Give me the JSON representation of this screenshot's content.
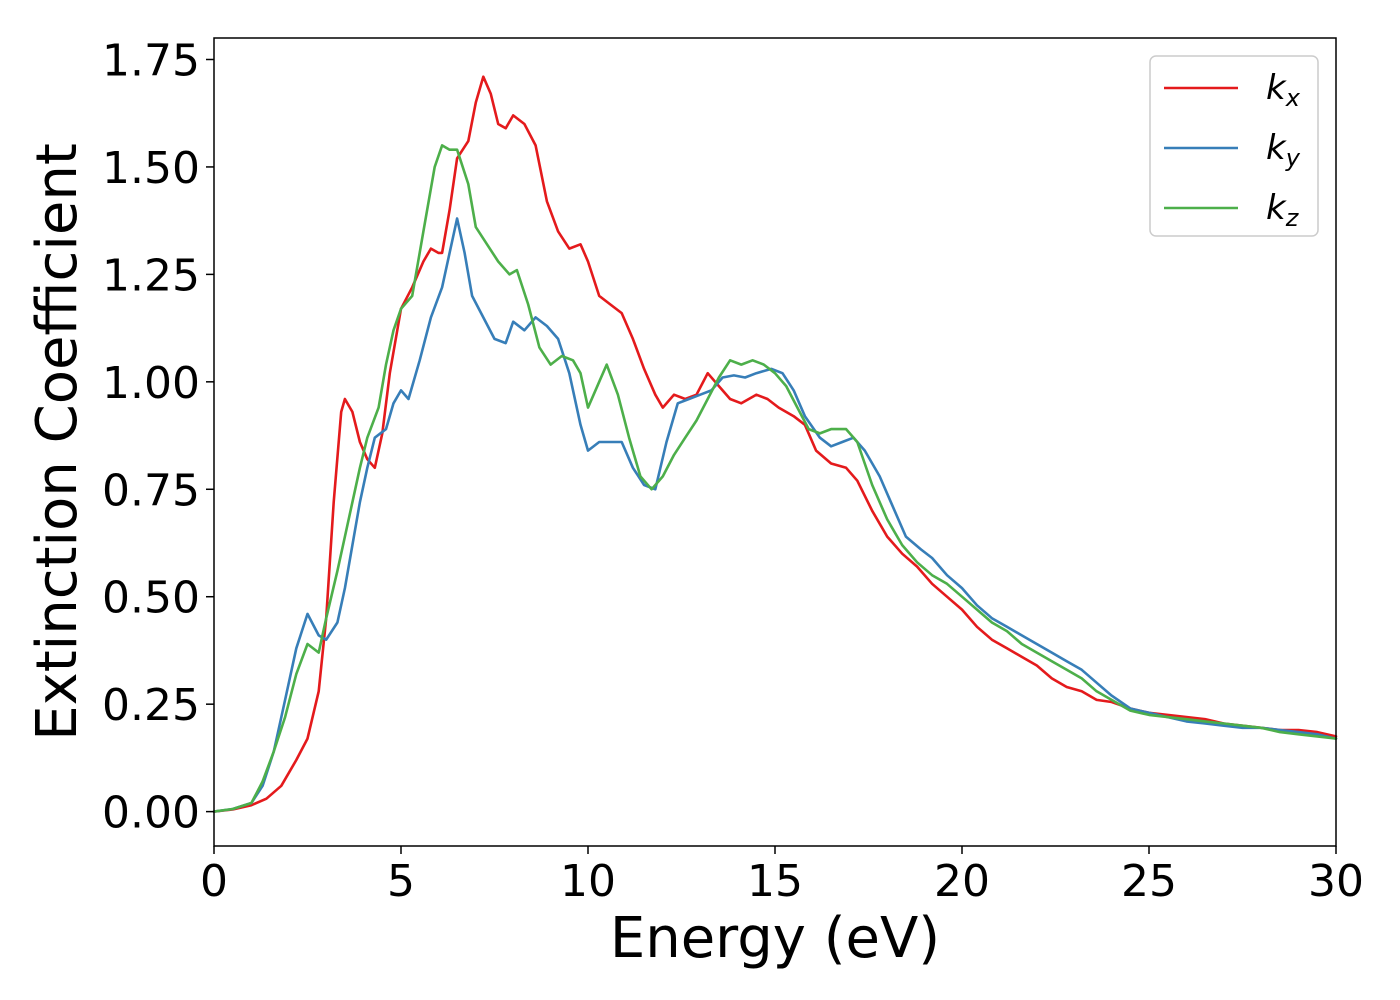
{
  "chart_data": {
    "type": "line",
    "title": "",
    "xlabel": "Energy (eV)",
    "ylabel": "Extinction Coefficient",
    "xlim": [
      0,
      30
    ],
    "ylim": [
      -0.08,
      1.8
    ],
    "x_ticks": [
      0,
      5,
      10,
      15,
      20,
      25,
      30
    ],
    "x_tick_labels": [
      "0",
      "5",
      "10",
      "15",
      "20",
      "25",
      "30"
    ],
    "y_ticks": [
      0.0,
      0.25,
      0.5,
      0.75,
      1.0,
      1.25,
      1.5,
      1.75
    ],
    "y_tick_labels": [
      "0.00",
      "0.25",
      "0.50",
      "0.75",
      "1.00",
      "1.25",
      "1.50",
      "1.75"
    ],
    "grid": false,
    "legend_position": "top-right",
    "series": [
      {
        "name": "kx",
        "label_base": "k",
        "label_sub": "x",
        "color": "#e41a1c",
        "points": [
          [
            0,
            0.0
          ],
          [
            0.5,
            0.005
          ],
          [
            1.0,
            0.015
          ],
          [
            1.4,
            0.03
          ],
          [
            1.8,
            0.06
          ],
          [
            2.2,
            0.12
          ],
          [
            2.5,
            0.17
          ],
          [
            2.8,
            0.28
          ],
          [
            3.0,
            0.45
          ],
          [
            3.2,
            0.72
          ],
          [
            3.4,
            0.93
          ],
          [
            3.5,
            0.96
          ],
          [
            3.7,
            0.93
          ],
          [
            3.9,
            0.86
          ],
          [
            4.1,
            0.82
          ],
          [
            4.3,
            0.8
          ],
          [
            4.5,
            0.88
          ],
          [
            4.7,
            1.02
          ],
          [
            5.0,
            1.17
          ],
          [
            5.3,
            1.22
          ],
          [
            5.6,
            1.28
          ],
          [
            5.8,
            1.31
          ],
          [
            6.0,
            1.3
          ],
          [
            6.1,
            1.3
          ],
          [
            6.3,
            1.4
          ],
          [
            6.5,
            1.52
          ],
          [
            6.8,
            1.56
          ],
          [
            7.0,
            1.65
          ],
          [
            7.2,
            1.71
          ],
          [
            7.4,
            1.67
          ],
          [
            7.6,
            1.6
          ],
          [
            7.8,
            1.59
          ],
          [
            8.0,
            1.62
          ],
          [
            8.3,
            1.6
          ],
          [
            8.6,
            1.55
          ],
          [
            8.9,
            1.42
          ],
          [
            9.2,
            1.35
          ],
          [
            9.5,
            1.31
          ],
          [
            9.8,
            1.32
          ],
          [
            10.0,
            1.28
          ],
          [
            10.3,
            1.2
          ],
          [
            10.6,
            1.18
          ],
          [
            10.9,
            1.16
          ],
          [
            11.2,
            1.1
          ],
          [
            11.5,
            1.03
          ],
          [
            11.8,
            0.97
          ],
          [
            12.0,
            0.94
          ],
          [
            12.3,
            0.97
          ],
          [
            12.6,
            0.96
          ],
          [
            12.9,
            0.97
          ],
          [
            13.2,
            1.02
          ],
          [
            13.5,
            0.99
          ],
          [
            13.8,
            0.96
          ],
          [
            14.1,
            0.95
          ],
          [
            14.5,
            0.97
          ],
          [
            14.8,
            0.96
          ],
          [
            15.1,
            0.94
          ],
          [
            15.5,
            0.92
          ],
          [
            15.8,
            0.9
          ],
          [
            16.1,
            0.84
          ],
          [
            16.5,
            0.81
          ],
          [
            16.9,
            0.8
          ],
          [
            17.2,
            0.77
          ],
          [
            17.6,
            0.7
          ],
          [
            18.0,
            0.64
          ],
          [
            18.4,
            0.6
          ],
          [
            18.8,
            0.57
          ],
          [
            19.2,
            0.53
          ],
          [
            19.6,
            0.5
          ],
          [
            20.0,
            0.47
          ],
          [
            20.4,
            0.43
          ],
          [
            20.8,
            0.4
          ],
          [
            21.2,
            0.38
          ],
          [
            21.6,
            0.36
          ],
          [
            22.0,
            0.34
          ],
          [
            22.4,
            0.31
          ],
          [
            22.8,
            0.29
          ],
          [
            23.2,
            0.28
          ],
          [
            23.6,
            0.26
          ],
          [
            24.0,
            0.255
          ],
          [
            24.5,
            0.24
          ],
          [
            25.0,
            0.23
          ],
          [
            25.5,
            0.225
          ],
          [
            26.0,
            0.22
          ],
          [
            26.5,
            0.215
          ],
          [
            27.0,
            0.205
          ],
          [
            27.5,
            0.2
          ],
          [
            28.0,
            0.195
          ],
          [
            28.5,
            0.19
          ],
          [
            29.0,
            0.19
          ],
          [
            29.5,
            0.185
          ],
          [
            30.0,
            0.175
          ]
        ]
      },
      {
        "name": "ky",
        "label_base": "k",
        "label_sub": "y",
        "color": "#377eb8",
        "points": [
          [
            0,
            0.0
          ],
          [
            0.5,
            0.006
          ],
          [
            1.0,
            0.02
          ],
          [
            1.3,
            0.06
          ],
          [
            1.6,
            0.14
          ],
          [
            1.9,
            0.26
          ],
          [
            2.2,
            0.38
          ],
          [
            2.5,
            0.46
          ],
          [
            2.8,
            0.41
          ],
          [
            3.0,
            0.4
          ],
          [
            3.3,
            0.44
          ],
          [
            3.5,
            0.52
          ],
          [
            3.7,
            0.62
          ],
          [
            3.9,
            0.72
          ],
          [
            4.1,
            0.8
          ],
          [
            4.3,
            0.87
          ],
          [
            4.6,
            0.89
          ],
          [
            4.8,
            0.95
          ],
          [
            5.0,
            0.98
          ],
          [
            5.2,
            0.96
          ],
          [
            5.5,
            1.05
          ],
          [
            5.8,
            1.15
          ],
          [
            6.1,
            1.22
          ],
          [
            6.3,
            1.3
          ],
          [
            6.5,
            1.38
          ],
          [
            6.7,
            1.3
          ],
          [
            6.9,
            1.2
          ],
          [
            7.2,
            1.15
          ],
          [
            7.5,
            1.1
          ],
          [
            7.8,
            1.09
          ],
          [
            8.0,
            1.14
          ],
          [
            8.3,
            1.12
          ],
          [
            8.6,
            1.15
          ],
          [
            8.9,
            1.13
          ],
          [
            9.2,
            1.1
          ],
          [
            9.5,
            1.02
          ],
          [
            9.8,
            0.9
          ],
          [
            10.0,
            0.84
          ],
          [
            10.3,
            0.86
          ],
          [
            10.6,
            0.86
          ],
          [
            10.9,
            0.86
          ],
          [
            11.2,
            0.8
          ],
          [
            11.5,
            0.76
          ],
          [
            11.8,
            0.75
          ],
          [
            12.1,
            0.86
          ],
          [
            12.4,
            0.95
          ],
          [
            12.7,
            0.96
          ],
          [
            13.0,
            0.97
          ],
          [
            13.3,
            0.98
          ],
          [
            13.6,
            1.01
          ],
          [
            13.9,
            1.015
          ],
          [
            14.2,
            1.01
          ],
          [
            14.5,
            1.02
          ],
          [
            14.9,
            1.03
          ],
          [
            15.2,
            1.02
          ],
          [
            15.5,
            0.98
          ],
          [
            15.8,
            0.92
          ],
          [
            16.2,
            0.87
          ],
          [
            16.5,
            0.85
          ],
          [
            16.8,
            0.86
          ],
          [
            17.1,
            0.87
          ],
          [
            17.4,
            0.84
          ],
          [
            17.8,
            0.78
          ],
          [
            18.1,
            0.72
          ],
          [
            18.5,
            0.64
          ],
          [
            18.9,
            0.61
          ],
          [
            19.2,
            0.59
          ],
          [
            19.6,
            0.55
          ],
          [
            20.0,
            0.52
          ],
          [
            20.4,
            0.48
          ],
          [
            20.8,
            0.45
          ],
          [
            21.2,
            0.43
          ],
          [
            21.6,
            0.41
          ],
          [
            22.0,
            0.39
          ],
          [
            22.4,
            0.37
          ],
          [
            22.8,
            0.35
          ],
          [
            23.2,
            0.33
          ],
          [
            23.6,
            0.3
          ],
          [
            24.0,
            0.27
          ],
          [
            24.5,
            0.24
          ],
          [
            25.0,
            0.23
          ],
          [
            25.5,
            0.22
          ],
          [
            26.0,
            0.21
          ],
          [
            26.5,
            0.205
          ],
          [
            27.0,
            0.2
          ],
          [
            27.5,
            0.195
          ],
          [
            28.0,
            0.195
          ],
          [
            28.5,
            0.19
          ],
          [
            29.0,
            0.185
          ],
          [
            29.5,
            0.18
          ],
          [
            30.0,
            0.17
          ]
        ]
      },
      {
        "name": "kz",
        "label_base": "k",
        "label_sub": "z",
        "color": "#4daf4a",
        "points": [
          [
            0,
            0.0
          ],
          [
            0.5,
            0.006
          ],
          [
            1.0,
            0.02
          ],
          [
            1.3,
            0.07
          ],
          [
            1.6,
            0.14
          ],
          [
            1.9,
            0.22
          ],
          [
            2.2,
            0.32
          ],
          [
            2.5,
            0.39
          ],
          [
            2.8,
            0.37
          ],
          [
            3.0,
            0.45
          ],
          [
            3.3,
            0.56
          ],
          [
            3.5,
            0.64
          ],
          [
            3.7,
            0.72
          ],
          [
            3.9,
            0.8
          ],
          [
            4.1,
            0.87
          ],
          [
            4.4,
            0.94
          ],
          [
            4.6,
            1.04
          ],
          [
            4.8,
            1.12
          ],
          [
            5.0,
            1.17
          ],
          [
            5.3,
            1.2
          ],
          [
            5.6,
            1.35
          ],
          [
            5.9,
            1.5
          ],
          [
            6.1,
            1.55
          ],
          [
            6.3,
            1.54
          ],
          [
            6.5,
            1.54
          ],
          [
            6.8,
            1.46
          ],
          [
            7.0,
            1.36
          ],
          [
            7.3,
            1.32
          ],
          [
            7.6,
            1.28
          ],
          [
            7.9,
            1.25
          ],
          [
            8.1,
            1.26
          ],
          [
            8.4,
            1.18
          ],
          [
            8.7,
            1.08
          ],
          [
            9.0,
            1.04
          ],
          [
            9.3,
            1.06
          ],
          [
            9.6,
            1.05
          ],
          [
            9.8,
            1.02
          ],
          [
            10.0,
            0.94
          ],
          [
            10.3,
            1.0
          ],
          [
            10.5,
            1.04
          ],
          [
            10.8,
            0.97
          ],
          [
            11.1,
            0.87
          ],
          [
            11.4,
            0.78
          ],
          [
            11.7,
            0.75
          ],
          [
            12.0,
            0.78
          ],
          [
            12.3,
            0.83
          ],
          [
            12.6,
            0.87
          ],
          [
            12.9,
            0.91
          ],
          [
            13.2,
            0.96
          ],
          [
            13.5,
            1.01
          ],
          [
            13.8,
            1.05
          ],
          [
            14.1,
            1.04
          ],
          [
            14.4,
            1.05
          ],
          [
            14.7,
            1.04
          ],
          [
            15.0,
            1.02
          ],
          [
            15.3,
            0.99
          ],
          [
            15.6,
            0.94
          ],
          [
            15.9,
            0.89
          ],
          [
            16.2,
            0.88
          ],
          [
            16.5,
            0.89
          ],
          [
            16.9,
            0.89
          ],
          [
            17.2,
            0.86
          ],
          [
            17.6,
            0.76
          ],
          [
            18.0,
            0.68
          ],
          [
            18.4,
            0.62
          ],
          [
            18.8,
            0.58
          ],
          [
            19.2,
            0.55
          ],
          [
            19.6,
            0.53
          ],
          [
            20.0,
            0.5
          ],
          [
            20.4,
            0.47
          ],
          [
            20.8,
            0.44
          ],
          [
            21.2,
            0.42
          ],
          [
            21.6,
            0.39
          ],
          [
            22.0,
            0.37
          ],
          [
            22.4,
            0.35
          ],
          [
            22.8,
            0.33
          ],
          [
            23.2,
            0.31
          ],
          [
            23.6,
            0.28
          ],
          [
            24.0,
            0.26
          ],
          [
            24.5,
            0.235
          ],
          [
            25.0,
            0.225
          ],
          [
            25.5,
            0.22
          ],
          [
            26.0,
            0.215
          ],
          [
            26.5,
            0.21
          ],
          [
            27.0,
            0.205
          ],
          [
            27.5,
            0.2
          ],
          [
            28.0,
            0.195
          ],
          [
            28.5,
            0.185
          ],
          [
            29.0,
            0.18
          ],
          [
            29.5,
            0.175
          ],
          [
            30.0,
            0.17
          ]
        ]
      }
    ]
  }
}
